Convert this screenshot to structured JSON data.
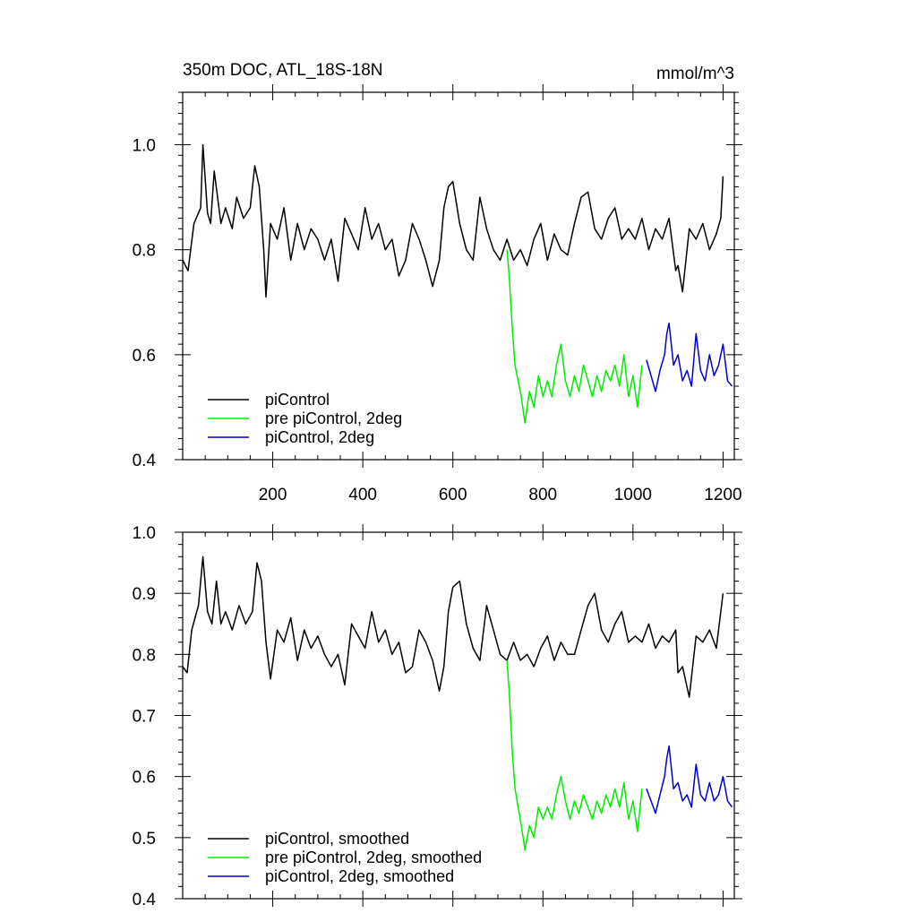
{
  "title_left": "350m DOC, ATL_18S-18N",
  "title_right": "mmol/m^3",
  "colors": {
    "piControl": "#000000",
    "pre_piControl_2deg": "#00ee00",
    "piControl_2deg": "#0000cc"
  },
  "chart_data": [
    {
      "type": "line",
      "title": "350m DOC, ATL_18S-18N",
      "units": "mmol/m^3",
      "xlim": [
        0,
        1225
      ],
      "ylim": [
        0.4,
        1.1
      ],
      "x_ticks": [
        200,
        400,
        600,
        800,
        1000,
        1200
      ],
      "y_ticks": [
        0.4,
        0.6,
        0.8,
        1.0
      ],
      "y_tick_labels": [
        "0.4",
        "0.6",
        "0.8",
        "1.0"
      ],
      "legend_position": "bottom-left",
      "series": [
        {
          "name": "piControl",
          "color": "#000000",
          "x": [
            0,
            12,
            25,
            40,
            45,
            55,
            62,
            70,
            85,
            95,
            110,
            120,
            135,
            150,
            160,
            170,
            180,
            185,
            195,
            210,
            225,
            240,
            255,
            270,
            285,
            300,
            315,
            330,
            345,
            360,
            375,
            390,
            405,
            420,
            435,
            450,
            465,
            480,
            495,
            510,
            525,
            540,
            555,
            570,
            580,
            590,
            600,
            615,
            630,
            645,
            660,
            675,
            690,
            705,
            720,
            735,
            750,
            765,
            780,
            795,
            810,
            825,
            840,
            855,
            870,
            885,
            900,
            915,
            930,
            945,
            960,
            975,
            990,
            1005,
            1020,
            1035,
            1050,
            1065,
            1080,
            1095,
            1100,
            1110,
            1125,
            1140,
            1155,
            1170,
            1185,
            1195,
            1200
          ],
          "values": [
            0.78,
            0.76,
            0.85,
            0.88,
            1.0,
            0.87,
            0.85,
            0.95,
            0.85,
            0.88,
            0.84,
            0.9,
            0.86,
            0.88,
            0.96,
            0.92,
            0.8,
            0.71,
            0.85,
            0.82,
            0.88,
            0.78,
            0.85,
            0.8,
            0.84,
            0.82,
            0.78,
            0.82,
            0.74,
            0.86,
            0.83,
            0.8,
            0.88,
            0.82,
            0.85,
            0.8,
            0.82,
            0.75,
            0.78,
            0.85,
            0.82,
            0.78,
            0.73,
            0.78,
            0.88,
            0.92,
            0.93,
            0.85,
            0.8,
            0.78,
            0.9,
            0.84,
            0.8,
            0.78,
            0.82,
            0.78,
            0.8,
            0.77,
            0.82,
            0.85,
            0.78,
            0.83,
            0.8,
            0.79,
            0.85,
            0.9,
            0.91,
            0.84,
            0.82,
            0.86,
            0.88,
            0.82,
            0.84,
            0.82,
            0.86,
            0.8,
            0.84,
            0.82,
            0.86,
            0.76,
            0.77,
            0.72,
            0.84,
            0.82,
            0.85,
            0.8,
            0.83,
            0.86,
            0.94
          ]
        },
        {
          "name": "pre piControl, 2deg",
          "color": "#00ee00",
          "x": [
            720,
            725,
            732,
            738,
            745,
            752,
            760,
            770,
            780,
            790,
            800,
            810,
            820,
            830,
            840,
            850,
            860,
            870,
            880,
            890,
            900,
            910,
            920,
            930,
            940,
            950,
            960,
            970,
            980,
            990,
            1000,
            1010,
            1020
          ],
          "values": [
            0.8,
            0.75,
            0.65,
            0.58,
            0.55,
            0.52,
            0.47,
            0.53,
            0.5,
            0.56,
            0.52,
            0.55,
            0.52,
            0.58,
            0.62,
            0.55,
            0.52,
            0.56,
            0.53,
            0.58,
            0.55,
            0.52,
            0.56,
            0.53,
            0.57,
            0.55,
            0.58,
            0.54,
            0.6,
            0.52,
            0.56,
            0.5,
            0.58
          ]
        },
        {
          "name": "piControl, 2deg",
          "color": "#0000cc",
          "x": [
            1030,
            1040,
            1050,
            1060,
            1070,
            1075,
            1080,
            1090,
            1100,
            1110,
            1120,
            1130,
            1140,
            1150,
            1160,
            1170,
            1180,
            1190,
            1200,
            1210,
            1220
          ],
          "values": [
            0.59,
            0.56,
            0.53,
            0.57,
            0.6,
            0.64,
            0.66,
            0.58,
            0.6,
            0.55,
            0.57,
            0.54,
            0.64,
            0.57,
            0.55,
            0.6,
            0.56,
            0.58,
            0.62,
            0.55,
            0.54
          ]
        }
      ]
    },
    {
      "type": "line",
      "xlim": [
        0,
        1225
      ],
      "ylim": [
        0.4,
        1.0
      ],
      "x_ticks": [
        200,
        400,
        600,
        800,
        1000,
        1200
      ],
      "y_ticks": [
        0.4,
        0.5,
        0.6,
        0.7,
        0.8,
        0.9,
        1.0
      ],
      "y_tick_labels": [
        "0.4",
        "0.5",
        "0.6",
        "0.7",
        "0.8",
        "0.9",
        "1.0"
      ],
      "legend_position": "bottom-left",
      "series": [
        {
          "name": "piControl, smoothed",
          "color": "#000000",
          "x": [
            0,
            10,
            20,
            35,
            45,
            55,
            65,
            75,
            85,
            95,
            110,
            125,
            140,
            155,
            165,
            175,
            185,
            195,
            210,
            225,
            240,
            255,
            270,
            285,
            300,
            315,
            330,
            345,
            360,
            375,
            390,
            405,
            420,
            435,
            450,
            465,
            480,
            495,
            510,
            525,
            540,
            555,
            570,
            580,
            590,
            600,
            615,
            630,
            645,
            660,
            675,
            690,
            705,
            720,
            735,
            750,
            765,
            780,
            795,
            810,
            825,
            840,
            855,
            870,
            885,
            900,
            915,
            930,
            945,
            960,
            975,
            990,
            1005,
            1020,
            1035,
            1050,
            1065,
            1080,
            1095,
            1100,
            1110,
            1125,
            1140,
            1155,
            1170,
            1185,
            1200
          ],
          "values": [
            0.78,
            0.77,
            0.84,
            0.88,
            0.96,
            0.87,
            0.85,
            0.92,
            0.85,
            0.87,
            0.84,
            0.88,
            0.85,
            0.87,
            0.95,
            0.92,
            0.82,
            0.76,
            0.84,
            0.82,
            0.86,
            0.79,
            0.84,
            0.81,
            0.83,
            0.8,
            0.78,
            0.8,
            0.75,
            0.85,
            0.83,
            0.81,
            0.87,
            0.82,
            0.84,
            0.8,
            0.82,
            0.77,
            0.78,
            0.84,
            0.82,
            0.79,
            0.74,
            0.78,
            0.87,
            0.91,
            0.92,
            0.85,
            0.81,
            0.79,
            0.88,
            0.84,
            0.8,
            0.79,
            0.82,
            0.79,
            0.8,
            0.78,
            0.81,
            0.83,
            0.79,
            0.82,
            0.8,
            0.8,
            0.84,
            0.88,
            0.9,
            0.84,
            0.82,
            0.85,
            0.87,
            0.82,
            0.83,
            0.82,
            0.85,
            0.81,
            0.83,
            0.82,
            0.84,
            0.77,
            0.78,
            0.73,
            0.83,
            0.82,
            0.84,
            0.81,
            0.9
          ]
        },
        {
          "name": "pre piControl, 2deg, smoothed",
          "color": "#00ee00",
          "x": [
            720,
            725,
            732,
            738,
            745,
            752,
            760,
            770,
            780,
            790,
            800,
            810,
            820,
            830,
            840,
            850,
            860,
            870,
            880,
            890,
            900,
            910,
            920,
            930,
            940,
            950,
            960,
            970,
            980,
            990,
            1000,
            1010,
            1020
          ],
          "values": [
            0.79,
            0.74,
            0.64,
            0.58,
            0.55,
            0.52,
            0.48,
            0.52,
            0.5,
            0.55,
            0.53,
            0.55,
            0.53,
            0.57,
            0.6,
            0.56,
            0.53,
            0.56,
            0.54,
            0.57,
            0.55,
            0.53,
            0.56,
            0.54,
            0.57,
            0.55,
            0.58,
            0.55,
            0.59,
            0.53,
            0.56,
            0.51,
            0.58
          ]
        },
        {
          "name": "piControl, 2deg, smoothed",
          "color": "#0000cc",
          "x": [
            1030,
            1040,
            1050,
            1060,
            1070,
            1075,
            1080,
            1090,
            1100,
            1110,
            1120,
            1130,
            1140,
            1150,
            1160,
            1170,
            1180,
            1190,
            1200,
            1210,
            1220
          ],
          "values": [
            0.58,
            0.56,
            0.54,
            0.57,
            0.6,
            0.63,
            0.65,
            0.58,
            0.59,
            0.56,
            0.57,
            0.55,
            0.62,
            0.57,
            0.56,
            0.59,
            0.56,
            0.57,
            0.6,
            0.56,
            0.55
          ]
        }
      ]
    }
  ]
}
